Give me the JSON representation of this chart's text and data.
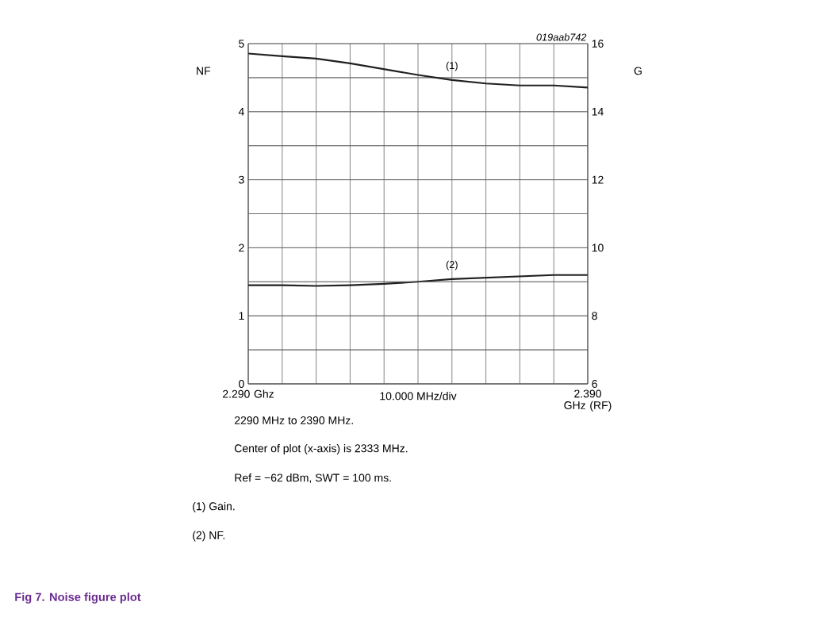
{
  "chart_data": {
    "type": "line",
    "title": "Fig 7. Noise figure plot",
    "xlabel": "10.000 MHz/div",
    "ylabel": "NF",
    "y2label": "G",
    "x": [
      2.29,
      2.3,
      2.31,
      2.32,
      2.33,
      2.34,
      2.35,
      2.36,
      2.37,
      2.38,
      2.39
    ],
    "series": [
      {
        "name": "(1)",
        "color": "#231f20",
        "axis": "y2",
        "values": [
          15.71,
          15.63,
          15.56,
          15.42,
          15.25,
          15.08,
          14.93,
          14.83,
          14.77,
          14.77,
          14.71
        ]
      },
      {
        "name": "(2)",
        "color": "#231f20",
        "values": [
          1.45,
          1.45,
          1.44,
          1.45,
          1.47,
          1.5,
          1.54,
          1.56,
          1.58,
          1.6,
          1.6
        ]
      }
    ],
    "xlim": [
      2.29,
      2.39
    ],
    "xticks": [
      {
        "value": 2.29,
        "label": "2.290 Ghz"
      },
      {
        "value": 2.3,
        "label": null
      },
      {
        "value": 2.31,
        "label": null
      },
      {
        "value": 2.32,
        "label": null
      },
      {
        "value": 2.33,
        "label": null
      },
      {
        "value": 2.34,
        "label": null
      },
      {
        "value": 2.35,
        "label": null
      },
      {
        "value": 2.36,
        "label": null
      },
      {
        "value": 2.37,
        "label": null
      },
      {
        "value": 2.38,
        "label": null
      },
      {
        "value": 2.39,
        "label": "2.390 GHz (RF)"
      }
    ],
    "ylim": [
      0,
      5
    ],
    "yticks": [
      0,
      {
        "value": 0.5,
        "label": null
      },
      1,
      {
        "value": 1.5,
        "label": null
      },
      2,
      {
        "value": 2.5,
        "label": null
      },
      3,
      {
        "value": 3.5,
        "label": null
      },
      4,
      {
        "value": 4.5,
        "label": null
      },
      5
    ],
    "y2lim": [
      6,
      16
    ],
    "y2ticks": [
      6,
      {
        "value": 7,
        "label": null
      },
      8,
      {
        "value": 9,
        "label": null
      },
      10,
      {
        "value": 11,
        "label": null
      },
      12,
      {
        "value": 13,
        "label": null
      },
      14,
      {
        "value": 15,
        "label": null
      },
      16
    ],
    "grid": true,
    "legend": false,
    "marker": "none",
    "line_style": "solid",
    "annotations": [
      "019aab742",
      "2290 MHz to 2390 MHz.",
      "Center of plot (x-axis) is 2333 MHz.",
      "Ref = −62 dBm, SWT = 100 ms.",
      "(1) Gain.",
      "(2) NF."
    ]
  }
}
